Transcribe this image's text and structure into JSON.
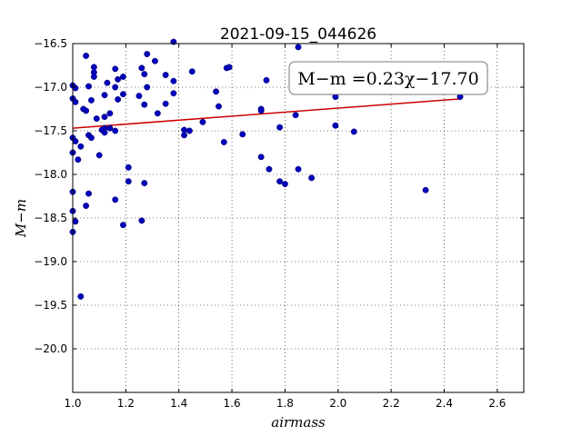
{
  "chart_data": {
    "type": "scatter",
    "title": "2021-09-15_044626",
    "xlabel": "airmass",
    "ylabel": "M−m",
    "xlim": [
      1.0,
      2.7
    ],
    "ylim": [
      -16.5,
      -20.5
    ],
    "y_inverted": true,
    "grid": true,
    "x_ticks": [
      "1.0",
      "1.2",
      "1.4",
      "1.6",
      "1.8",
      "2.0",
      "2.2",
      "2.4",
      "2.6"
    ],
    "y_ticks": [
      "−16.5",
      "−17.0",
      "−17.5",
      "−18.0",
      "−18.5",
      "−19.0",
      "−19.5",
      "−20.0"
    ],
    "fit_label": "M−m =0.23χ−17.70",
    "fit_line": {
      "slope": 0.23,
      "intercept": -17.7,
      "x_range": [
        1.0,
        2.46
      ],
      "color": "#cc0000"
    },
    "marker_color": "#0000bb",
    "points": [
      [
        1.0,
        -16.98
      ],
      [
        1.01,
        -17.01
      ],
      [
        1.0,
        -17.13
      ],
      [
        1.01,
        -17.17
      ],
      [
        1.0,
        -17.58
      ],
      [
        1.01,
        -17.62
      ],
      [
        1.0,
        -17.75
      ],
      [
        1.02,
        -17.83
      ],
      [
        1.0,
        -18.2
      ],
      [
        1.0,
        -18.42
      ],
      [
        1.01,
        -18.54
      ],
      [
        1.0,
        -18.66
      ],
      [
        1.03,
        -17.68
      ],
      [
        1.04,
        -17.25
      ],
      [
        1.05,
        -17.27
      ],
      [
        1.05,
        -16.64
      ],
      [
        1.06,
        -16.99
      ],
      [
        1.07,
        -17.15
      ],
      [
        1.06,
        -17.55
      ],
      [
        1.07,
        -17.58
      ],
      [
        1.06,
        -18.22
      ],
      [
        1.05,
        -18.36
      ],
      [
        1.03,
        -19.4
      ],
      [
        1.08,
        -16.77
      ],
      [
        1.08,
        -16.83
      ],
      [
        1.08,
        -16.88
      ],
      [
        1.09,
        -17.36
      ],
      [
        1.1,
        -17.78
      ],
      [
        1.12,
        -17.09
      ],
      [
        1.12,
        -17.34
      ],
      [
        1.12,
        -17.47
      ],
      [
        1.11,
        -17.49
      ],
      [
        1.12,
        -17.52
      ],
      [
        1.13,
        -16.95
      ],
      [
        1.14,
        -17.3
      ],
      [
        1.14,
        -17.47
      ],
      [
        1.16,
        -16.79
      ],
      [
        1.17,
        -16.91
      ],
      [
        1.16,
        -17.0
      ],
      [
        1.17,
        -17.14
      ],
      [
        1.16,
        -17.5
      ],
      [
        1.16,
        -18.29
      ],
      [
        1.19,
        -16.88
      ],
      [
        1.19,
        -17.08
      ],
      [
        1.21,
        -17.92
      ],
      [
        1.21,
        -18.08
      ],
      [
        1.19,
        -18.58
      ],
      [
        1.25,
        -17.1
      ],
      [
        1.26,
        -16.78
      ],
      [
        1.27,
        -16.85
      ],
      [
        1.27,
        -17.2
      ],
      [
        1.28,
        -17.0
      ],
      [
        1.28,
        -16.62
      ],
      [
        1.31,
        -16.7
      ],
      [
        1.32,
        -17.3
      ],
      [
        1.27,
        -18.1
      ],
      [
        1.26,
        -18.53
      ],
      [
        1.35,
        -16.86
      ],
      [
        1.35,
        -17.19
      ],
      [
        1.38,
        -16.48
      ],
      [
        1.38,
        -16.93
      ],
      [
        1.38,
        -17.07
      ],
      [
        1.42,
        -17.49
      ],
      [
        1.42,
        -17.55
      ],
      [
        1.44,
        -17.5
      ],
      [
        1.45,
        -16.82
      ],
      [
        1.49,
        -17.4
      ],
      [
        1.54,
        -17.05
      ],
      [
        1.55,
        -17.22
      ],
      [
        1.57,
        -17.63
      ],
      [
        1.59,
        -16.77
      ],
      [
        1.58,
        -16.78
      ],
      [
        1.64,
        -17.54
      ],
      [
        1.71,
        -17.25
      ],
      [
        1.71,
        -17.27
      ],
      [
        1.71,
        -17.8
      ],
      [
        1.73,
        -16.92
      ],
      [
        1.74,
        -17.94
      ],
      [
        1.78,
        -17.46
      ],
      [
        1.78,
        -18.08
      ],
      [
        1.8,
        -18.11
      ],
      [
        1.84,
        -17.32
      ],
      [
        1.85,
        -17.94
      ],
      [
        1.85,
        -16.54
      ],
      [
        1.9,
        -18.04
      ],
      [
        1.99,
        -17.11
      ],
      [
        1.99,
        -17.44
      ],
      [
        2.06,
        -17.51
      ],
      [
        2.33,
        -18.18
      ],
      [
        2.46,
        -17.11
      ]
    ]
  }
}
